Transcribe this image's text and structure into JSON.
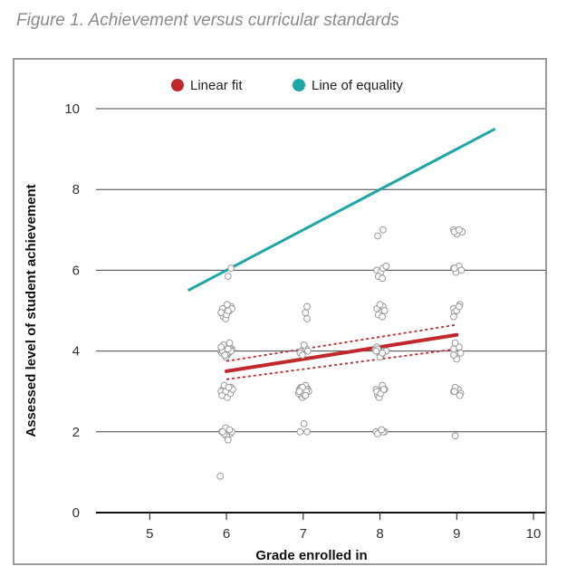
{
  "figure": {
    "caption": "Figure 1. Achievement versus curricular standards"
  },
  "chart_data": {
    "type": "scatter",
    "title": "",
    "xlabel": "Grade enrolled in",
    "ylabel": "Assessed level of student achievement",
    "xlim": [
      4.3,
      10.2
    ],
    "ylim": [
      0,
      10
    ],
    "xticks": [
      5,
      6,
      7,
      8,
      9,
      10
    ],
    "yticks": [
      0,
      2,
      4,
      6,
      8,
      10
    ],
    "grid": "horizontal",
    "legend_position": "top",
    "legend": [
      {
        "name": "Linear fit",
        "color": "#c0282c"
      },
      {
        "name": "Line of equality",
        "color": "#1fa6a6"
      }
    ],
    "line_of_equality": {
      "x": [
        5.5,
        9.5
      ],
      "y": [
        5.5,
        9.5
      ],
      "color": "#1fa6a6"
    },
    "linear_fit": {
      "x": [
        6,
        9
      ],
      "y": [
        3.5,
        4.4
      ],
      "color": "#c0282c"
    },
    "confidence_band": {
      "upper": {
        "x": [
          6,
          9
        ],
        "y": [
          3.75,
          4.65
        ]
      },
      "lower": {
        "x": [
          6,
          9
        ],
        "y": [
          3.3,
          4.05
        ]
      },
      "color": "#c0282c"
    },
    "points": {
      "x": [
        5.95,
        6.0,
        6.03,
        5.97,
        5.93,
        6.06,
        6.01,
        5.96,
        6.04,
        5.99,
        6.07,
        5.94,
        5.95,
        6.02,
        6.06,
        5.98,
        5.93,
        6.04,
        6.01,
        5.97,
        6.05,
        5.99,
        6.08,
        5.94,
        6.03,
        5.96,
        6.02,
        6.05,
        5.94,
        5.99,
        6.07,
        6.0,
        5.97,
        6.04,
        5.95,
        6.02,
        5.95,
        6.03,
        6.06,
        5.98,
        5.96,
        6.04,
        6.01,
        5.93,
        6.07,
        5.99,
        6.0,
        6.02,
        5.95,
        6.01,
        6.05,
        5.93,
        6.04,
        5.98,
        6.06,
        6.02,
        6.02,
        6.06,
        5.92,
        6.97,
        7.02,
        7.04,
        6.96,
        7.01,
        7.06,
        6.99,
        6.95,
        7.0,
        7.04,
        6.97,
        7.02,
        7.06,
        6.99,
        7.03,
        6.94,
        7.0,
        7.05,
        6.97,
        7.02,
        7.07,
        6.96,
        7.01,
        7.04,
        6.99,
        7.03,
        6.95,
        6.96,
        7.05,
        7.01,
        7.05,
        7.03,
        7.05,
        7.94,
        7.99,
        8.05,
        8.02,
        7.96,
        8.08,
        8.0,
        7.97,
        8.03,
        7.95,
        7.96,
        8.01,
        8.04,
        7.98,
        8.06,
        8.0,
        8.03,
        7.95,
        8.0,
        8.04,
        7.97,
        8.02,
        8.06,
        7.99,
        8.03,
        7.96,
        8.01,
        8.05,
        7.96,
        8.01,
        8.04,
        8.08,
        7.98,
        8.03,
        7.95,
        8.0,
        8.06,
        7.97,
        8.04,
        8.02,
        7.97,
        8.04,
        8.96,
        9.03,
        9.05,
        8.98,
        9.0,
        8.96,
        8.96,
        9.04,
        8.97,
        9.0,
        9.03,
        8.96,
        8.96,
        9.02,
        9.05,
        8.98,
        9.04,
        8.97,
        8.96,
        9.03,
        9.06,
        8.99,
        8.97,
        8.96,
        9.07,
        9.0,
        8.97,
        9.03,
        8.98
      ],
      "y": [
        4.0,
        4.05,
        3.95,
        4.1,
        3.98,
        4.02,
        3.9,
        4.15,
        4.0,
        3.85,
        4.05,
        3.95,
        3.05,
        2.95,
        3.1,
        2.9,
        3.0,
        3.05,
        2.85,
        3.15,
        2.95,
        3.0,
        3.05,
        2.9,
        3.1,
        2.0,
        2.05,
        1.95,
        2.0,
        2.1,
        2.0,
        1.9,
        1.95,
        2.05,
        2.0,
        1.8,
        5.05,
        5.0,
        5.1,
        4.95,
        4.85,
        5.0,
        5.15,
        4.95,
        5.05,
        4.8,
        4.9,
        5.0,
        4.0,
        3.95,
        4.05,
        4.1,
        4.2,
        3.9,
        4.0,
        4.05,
        5.85,
        6.05,
        0.9,
        4.0,
        4.1,
        4.05,
        3.95,
        4.15,
        4.0,
        3.9,
        3.05,
        2.95,
        3.1,
        2.9,
        3.0,
        3.05,
        2.85,
        3.15,
        2.95,
        3.0,
        3.05,
        3.1,
        2.9,
        3.0,
        3.05,
        2.95,
        3.0,
        3.1,
        2.9,
        3.0,
        2.0,
        2.0,
        2.2,
        5.1,
        4.95,
        4.8,
        4.05,
        3.95,
        4.0,
        3.9,
        4.1,
        4.0,
        3.85,
        4.05,
        3.95,
        4.0,
        5.05,
        4.95,
        5.1,
        4.9,
        5.0,
        5.15,
        4.85,
        3.05,
        2.95,
        3.1,
        2.9,
        3.0,
        3.05,
        2.85,
        3.15,
        3.0,
        2.95,
        3.05,
        6.0,
        5.95,
        6.05,
        6.1,
        5.85,
        5.8,
        2.0,
        2.0,
        2.0,
        1.95,
        2.0,
        2.05,
        6.85,
        7.0,
        4.05,
        4.1,
        3.95,
        4.2,
        3.8,
        3.9,
        5.05,
        5.15,
        4.95,
        5.0,
        5.1,
        4.85,
        3.0,
        3.05,
        2.95,
        3.1,
        2.9,
        3.0,
        6.05,
        6.1,
        6.0,
        5.95,
        6.05,
        7.0,
        6.95,
        6.9,
        6.95,
        7.0,
        1.9
      ]
    }
  }
}
